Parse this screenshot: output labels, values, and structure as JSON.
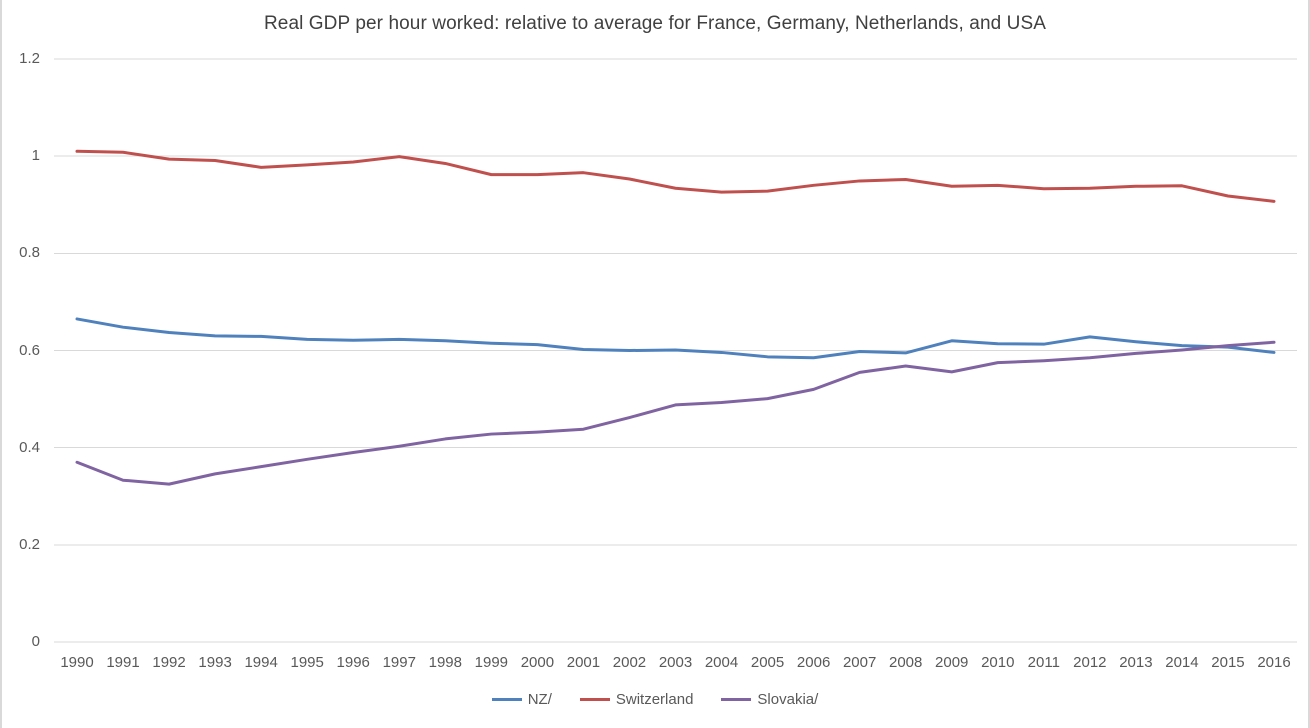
{
  "page": {
    "background": "#ffffff",
    "edge_line_color": "#d9d9d9"
  },
  "chart_data": {
    "type": "line",
    "title": "Real GDP per hour worked: relative to average for France, Germany, Netherlands, and USA",
    "title_color": "#404040",
    "axis_label_color": "#595959",
    "gridline_color": "#d9d9d9",
    "grid": "horizontal",
    "legend_position": "bottom",
    "ylim": [
      0,
      1.2
    ],
    "yticks": [
      0,
      0.2,
      0.4,
      0.6,
      0.8,
      1,
      1.2
    ],
    "ytick_labels": [
      "0",
      "0.2",
      "0.4",
      "0.6",
      "0.8",
      "1",
      "1.2"
    ],
    "x": [
      1990,
      1991,
      1992,
      1993,
      1994,
      1995,
      1996,
      1997,
      1998,
      1999,
      2000,
      2001,
      2002,
      2003,
      2004,
      2005,
      2006,
      2007,
      2008,
      2009,
      2010,
      2011,
      2012,
      2013,
      2014,
      2015,
      2016
    ],
    "series": [
      {
        "name": "NZ/",
        "color": "#4F81BD",
        "values": [
          0.665,
          0.648,
          0.637,
          0.63,
          0.629,
          0.623,
          0.621,
          0.623,
          0.62,
          0.615,
          0.612,
          0.602,
          0.6,
          0.601,
          0.596,
          0.587,
          0.585,
          0.598,
          0.595,
          0.62,
          0.614,
          0.613,
          0.628,
          0.618,
          0.61,
          0.607,
          0.596
        ]
      },
      {
        "name": "Switzerland",
        "color": "#C0504D",
        "values": [
          1.01,
          1.008,
          0.994,
          0.991,
          0.977,
          0.982,
          0.988,
          0.999,
          0.985,
          0.962,
          0.962,
          0.966,
          0.953,
          0.934,
          0.926,
          0.928,
          0.94,
          0.949,
          0.952,
          0.938,
          0.94,
          0.933,
          0.934,
          0.938,
          0.939,
          0.918,
          0.907
        ]
      },
      {
        "name": "Slovakia/",
        "color": "#8064A2",
        "values": [
          0.37,
          0.333,
          0.325,
          0.346,
          0.361,
          0.376,
          0.39,
          0.403,
          0.418,
          0.428,
          0.432,
          0.438,
          0.462,
          0.488,
          0.493,
          0.501,
          0.52,
          0.555,
          0.568,
          0.556,
          0.575,
          0.579,
          0.585,
          0.594,
          0.601,
          0.61,
          0.617
        ]
      }
    ]
  }
}
